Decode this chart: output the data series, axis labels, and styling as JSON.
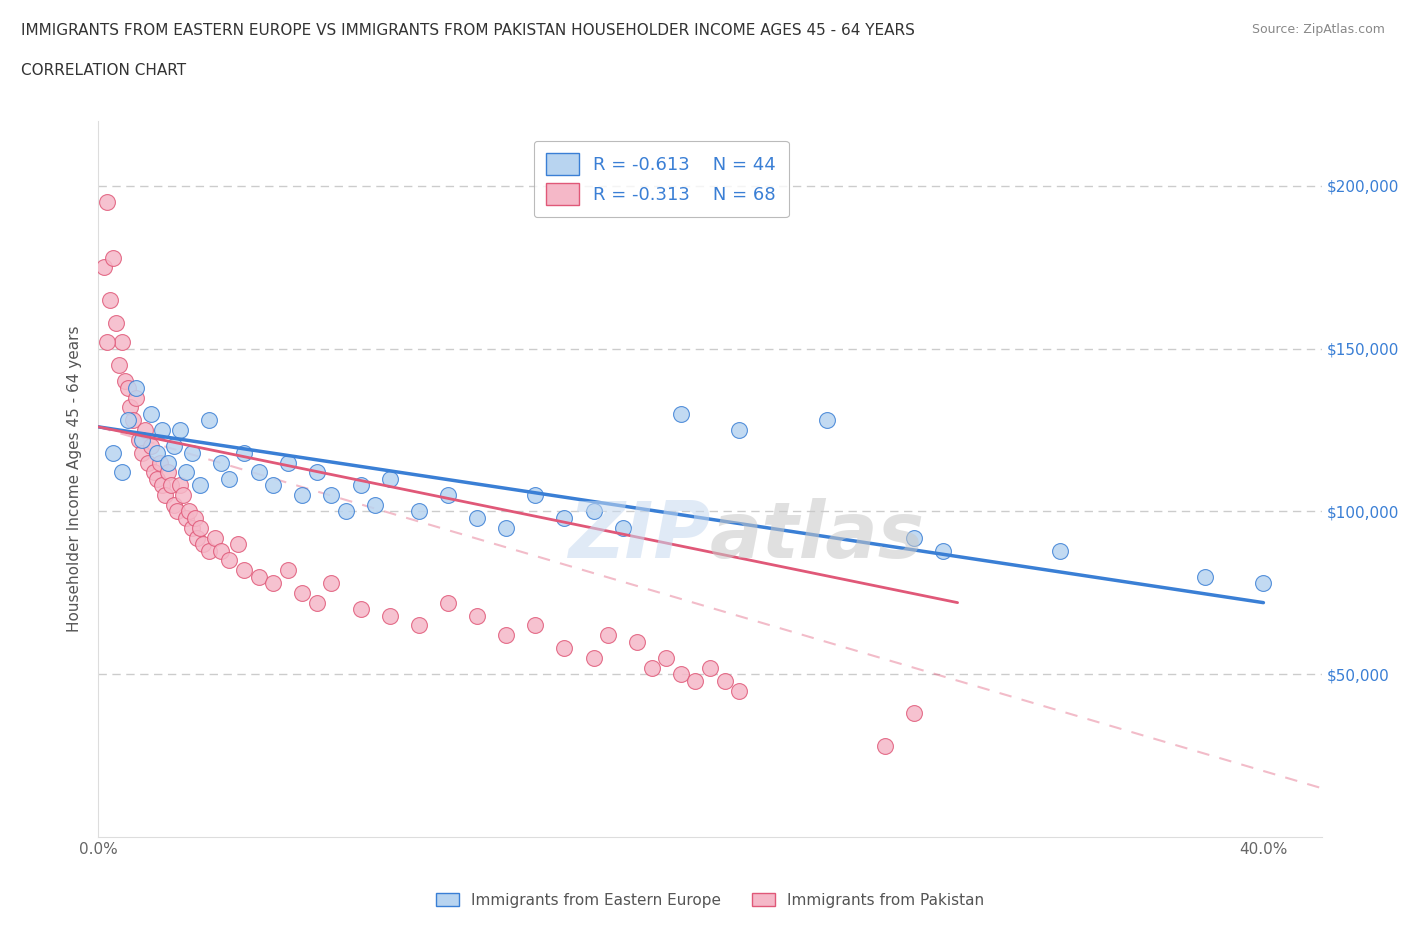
{
  "title_line1": "IMMIGRANTS FROM EASTERN EUROPE VS IMMIGRANTS FROM PAKISTAN HOUSEHOLDER INCOME AGES 45 - 64 YEARS",
  "title_line2": "CORRELATION CHART",
  "source_text": "Source: ZipAtlas.com",
  "watermark": "ZIPAtlas",
  "ylabel": "Householder Income Ages 45 - 64 years",
  "xlim": [
    0.0,
    0.42
  ],
  "ylim": [
    0,
    220000
  ],
  "ytick_values": [
    0,
    50000,
    100000,
    150000,
    200000
  ],
  "ytick_labels": [
    "",
    "$50,000",
    "$100,000",
    "$150,000",
    "$200,000"
  ],
  "grid_color": "#cccccc",
  "blue_color": "#b8d4f0",
  "pink_color": "#f5b8c8",
  "blue_line_color": "#3a7fd5",
  "pink_line_color": "#e05878",
  "R_blue": -0.613,
  "N_blue": 44,
  "R_pink": -0.313,
  "N_pink": 68,
  "legend_label_blue": "Immigrants from Eastern Europe",
  "legend_label_pink": "Immigrants from Pakistan",
  "blue_scatter": [
    [
      0.005,
      118000
    ],
    [
      0.008,
      112000
    ],
    [
      0.01,
      128000
    ],
    [
      0.013,
      138000
    ],
    [
      0.015,
      122000
    ],
    [
      0.018,
      130000
    ],
    [
      0.02,
      118000
    ],
    [
      0.022,
      125000
    ],
    [
      0.024,
      115000
    ],
    [
      0.026,
      120000
    ],
    [
      0.028,
      125000
    ],
    [
      0.03,
      112000
    ],
    [
      0.032,
      118000
    ],
    [
      0.035,
      108000
    ],
    [
      0.038,
      128000
    ],
    [
      0.042,
      115000
    ],
    [
      0.045,
      110000
    ],
    [
      0.05,
      118000
    ],
    [
      0.055,
      112000
    ],
    [
      0.06,
      108000
    ],
    [
      0.065,
      115000
    ],
    [
      0.07,
      105000
    ],
    [
      0.075,
      112000
    ],
    [
      0.08,
      105000
    ],
    [
      0.085,
      100000
    ],
    [
      0.09,
      108000
    ],
    [
      0.095,
      102000
    ],
    [
      0.1,
      110000
    ],
    [
      0.11,
      100000
    ],
    [
      0.12,
      105000
    ],
    [
      0.13,
      98000
    ],
    [
      0.14,
      95000
    ],
    [
      0.15,
      105000
    ],
    [
      0.16,
      98000
    ],
    [
      0.17,
      100000
    ],
    [
      0.18,
      95000
    ],
    [
      0.2,
      130000
    ],
    [
      0.22,
      125000
    ],
    [
      0.25,
      128000
    ],
    [
      0.28,
      92000
    ],
    [
      0.29,
      88000
    ],
    [
      0.33,
      88000
    ],
    [
      0.38,
      80000
    ],
    [
      0.4,
      78000
    ]
  ],
  "pink_scatter": [
    [
      0.002,
      175000
    ],
    [
      0.003,
      195000
    ],
    [
      0.004,
      165000
    ],
    [
      0.005,
      178000
    ],
    [
      0.006,
      158000
    ],
    [
      0.007,
      145000
    ],
    [
      0.008,
      152000
    ],
    [
      0.009,
      140000
    ],
    [
      0.01,
      138000
    ],
    [
      0.011,
      132000
    ],
    [
      0.012,
      128000
    ],
    [
      0.013,
      135000
    ],
    [
      0.014,
      122000
    ],
    [
      0.015,
      118000
    ],
    [
      0.016,
      125000
    ],
    [
      0.017,
      115000
    ],
    [
      0.018,
      120000
    ],
    [
      0.019,
      112000
    ],
    [
      0.02,
      110000
    ],
    [
      0.021,
      115000
    ],
    [
      0.022,
      108000
    ],
    [
      0.023,
      105000
    ],
    [
      0.024,
      112000
    ],
    [
      0.025,
      108000
    ],
    [
      0.026,
      102000
    ],
    [
      0.027,
      100000
    ],
    [
      0.028,
      108000
    ],
    [
      0.029,
      105000
    ],
    [
      0.03,
      98000
    ],
    [
      0.031,
      100000
    ],
    [
      0.032,
      95000
    ],
    [
      0.033,
      98000
    ],
    [
      0.034,
      92000
    ],
    [
      0.035,
      95000
    ],
    [
      0.036,
      90000
    ],
    [
      0.038,
      88000
    ],
    [
      0.04,
      92000
    ],
    [
      0.042,
      88000
    ],
    [
      0.045,
      85000
    ],
    [
      0.048,
      90000
    ],
    [
      0.05,
      82000
    ],
    [
      0.055,
      80000
    ],
    [
      0.06,
      78000
    ],
    [
      0.065,
      82000
    ],
    [
      0.07,
      75000
    ],
    [
      0.075,
      72000
    ],
    [
      0.08,
      78000
    ],
    [
      0.09,
      70000
    ],
    [
      0.1,
      68000
    ],
    [
      0.11,
      65000
    ],
    [
      0.12,
      72000
    ],
    [
      0.13,
      68000
    ],
    [
      0.14,
      62000
    ],
    [
      0.15,
      65000
    ],
    [
      0.16,
      58000
    ],
    [
      0.17,
      55000
    ],
    [
      0.175,
      62000
    ],
    [
      0.185,
      60000
    ],
    [
      0.19,
      52000
    ],
    [
      0.195,
      55000
    ],
    [
      0.2,
      50000
    ],
    [
      0.205,
      48000
    ],
    [
      0.21,
      52000
    ],
    [
      0.215,
      48000
    ],
    [
      0.22,
      45000
    ],
    [
      0.27,
      28000
    ],
    [
      0.28,
      38000
    ],
    [
      0.003,
      152000
    ]
  ]
}
